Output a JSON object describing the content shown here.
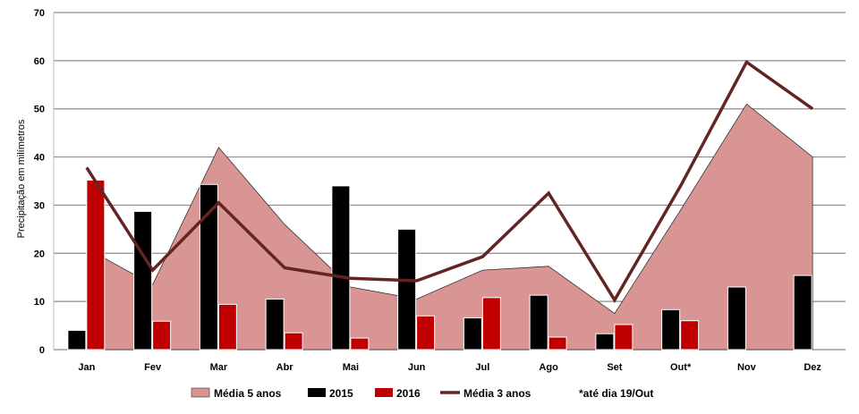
{
  "chart_data": {
    "type": "bar",
    "title": "",
    "xlabel": "",
    "ylabel": "Precipitação em milímetros",
    "ylim": [
      0,
      70
    ],
    "yticks": [
      0,
      10,
      20,
      30,
      40,
      50,
      60,
      70
    ],
    "grid": true,
    "legend_position": "bottom",
    "categories": [
      "Jan",
      "Fev",
      "Mar",
      "Abr",
      "Mai",
      "Jun",
      "Jul",
      "Ago",
      "Set",
      "Out*",
      "Nov",
      "Dez"
    ],
    "series": [
      {
        "name": "Média 5 anos",
        "type": "area",
        "color": "#d99594",
        "values": [
          21,
          13.5,
          42,
          26,
          13,
          10.5,
          16.5,
          17.3,
          7.5,
          29,
          51,
          40
        ]
      },
      {
        "name": "2015",
        "type": "bar",
        "color": "#000000",
        "values": [
          4,
          28.7,
          34.3,
          10.5,
          34,
          25,
          6.6,
          11.3,
          3.3,
          8.3,
          13,
          15.4
        ]
      },
      {
        "name": "2016",
        "type": "bar",
        "color": "#c00000",
        "values": [
          35.2,
          5.9,
          9.4,
          3.5,
          2.4,
          7,
          10.8,
          2.6,
          5.2,
          6,
          null,
          null
        ]
      },
      {
        "name": "Média 3 anos",
        "type": "line",
        "color": "#632523",
        "values": [
          37.8,
          16.5,
          30.5,
          17,
          14.8,
          14.3,
          19.3,
          32.5,
          10.3,
          34,
          59.7,
          50
        ]
      }
    ],
    "annotation": "*até dia 19/Out"
  }
}
